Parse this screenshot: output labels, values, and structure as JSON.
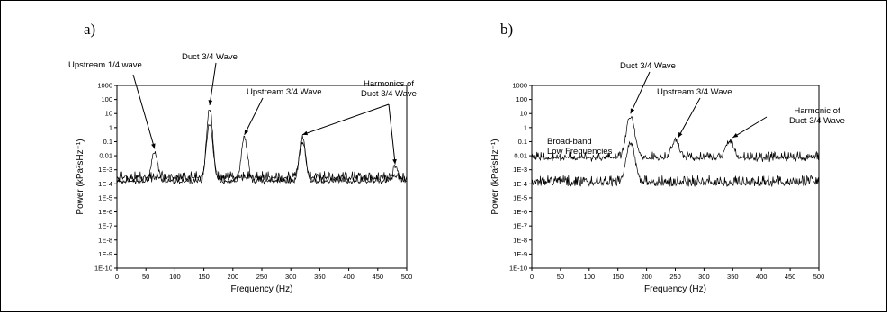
{
  "chart_data": [
    {
      "type": "line",
      "panel_label": "a)",
      "xlabel": "Frequency (Hz)",
      "ylabel": "Power (kPa²sHz⁻¹)",
      "xlim": [
        0,
        500
      ],
      "ylim_log10": [
        -10,
        3
      ],
      "yscale": "log",
      "x_ticks": [
        "0",
        "50",
        "100",
        "150",
        "200",
        "250",
        "300",
        "350",
        "400",
        "450",
        "500"
      ],
      "y_ticks": [
        "1E-10",
        "1E-9",
        "1E-8",
        "1E-7",
        "1E-6",
        "1E-5",
        "1E-4",
        "1E-3",
        "0.01",
        "0.1",
        "1",
        "10",
        "100",
        "1000"
      ],
      "series": [
        {
          "baseline_log10": -4.0,
          "peaks": [
            {
              "x": 65,
              "log10_power": -1.7
            },
            {
              "x": 160,
              "log10_power": 1.4
            },
            {
              "x": 220,
              "log10_power": -0.7
            },
            {
              "x": 320,
              "log10_power": -0.7
            },
            {
              "x": 480,
              "log10_power": -2.8
            }
          ]
        },
        {
          "baseline_log10": -3.7,
          "peaks": [
            {
              "x": 160,
              "log10_power": 0.3
            },
            {
              "x": 320,
              "log10_power": -1.0
            }
          ]
        }
      ],
      "annotations": [
        {
          "text": "Upstream 1/4 wave",
          "x": 65,
          "log10_power": -1.7
        },
        {
          "text": "Duct 3/4 Wave",
          "x": 160,
          "log10_power": 1.4
        },
        {
          "text": "Upstream 3/4 Wave",
          "x": 220,
          "log10_power": -0.7
        },
        {
          "text": "Harmonics of",
          "text2": "Duct 3/4 Wave",
          "targets": [
            {
              "x": 320,
              "log10_power": -0.7
            },
            {
              "x": 480,
              "log10_power": -2.8
            }
          ]
        }
      ]
    },
    {
      "type": "line",
      "panel_label": "b)",
      "xlabel": "Frequency (Hz)",
      "ylabel": "Power (kPa²sHz⁻¹)",
      "xlim": [
        0,
        500
      ],
      "ylim_log10": [
        -10,
        3
      ],
      "yscale": "log",
      "x_ticks": [
        "0",
        "50",
        "100",
        "150",
        "200",
        "250",
        "300",
        "350",
        "400",
        "450",
        "500"
      ],
      "y_ticks": [
        "1E-10",
        "1E-9",
        "1E-8",
        "1E-7",
        "1E-6",
        "1E-5",
        "1E-4",
        "1E-3",
        "0.01",
        "0.1",
        "1",
        "10",
        "100",
        "1000"
      ],
      "series": [
        {
          "baseline_log10": -2.3,
          "peaks": [
            {
              "x": 172,
              "log10_power": 0.8
            },
            {
              "x": 250,
              "log10_power": -0.9
            },
            {
              "x": 345,
              "log10_power": -0.9
            }
          ]
        },
        {
          "baseline_log10": -4.0,
          "peaks": [
            {
              "x": 172,
              "log10_power": -1.0
            }
          ]
        }
      ],
      "annotations": [
        {
          "text": "Broad-band",
          "text2": "Low Frequencies",
          "x": 80,
          "log10_power": -2.0
        },
        {
          "text": "Duct 3/4 Wave",
          "x": 172,
          "log10_power": 0.8
        },
        {
          "text": "Upstream 3/4 Wave",
          "x": 255,
          "log10_power": -0.9
        },
        {
          "text": "Harmonic of",
          "text2": "Duct 3/4 Wave",
          "x": 350,
          "log10_power": -0.9
        }
      ]
    }
  ]
}
